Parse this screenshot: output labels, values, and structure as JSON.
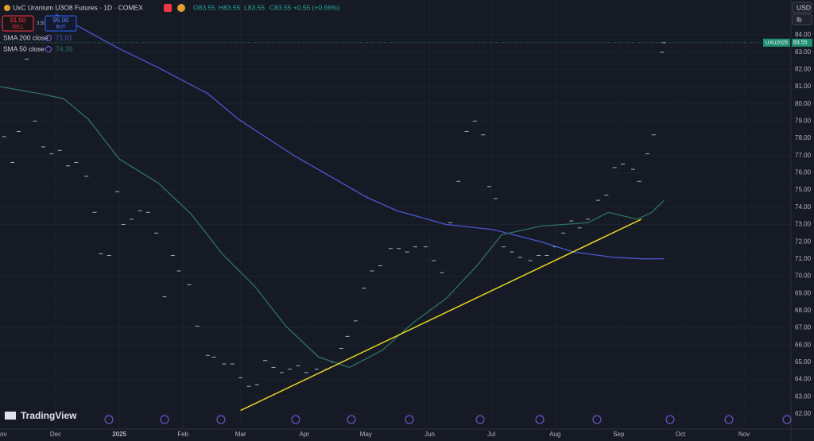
{
  "header": {
    "title": "UxC Uranium U3O8 Futures · 1D · COMEX",
    "ohlc": [
      "O83.55",
      "H83.55",
      "L83.55",
      "C83.55 +0.55 (+0.66%)"
    ],
    "sell": {
      "price": "91.50",
      "label": "SELL"
    },
    "spread": "3.50",
    "buy": {
      "price": "95.00",
      "label": "BUY"
    },
    "currency": "USD",
    "unit": "lb",
    "logo": "TradingView"
  },
  "chart_data": {
    "type": "line",
    "symbol_label": "UXU2025",
    "grid": true,
    "xlim": [
      2.94,
      387.8
    ],
    "ylim": [
      61.12,
      86.03
    ],
    "xticks": [
      {
        "value": 0,
        "label": "ov"
      },
      {
        "value": 30,
        "label": "Dec"
      },
      {
        "value": 61,
        "label": "2025"
      },
      {
        "value": 92,
        "label": "Feb"
      },
      {
        "value": 120,
        "label": "Mar"
      },
      {
        "value": 151,
        "label": "Apr"
      },
      {
        "value": 181,
        "label": "May"
      },
      {
        "value": 212,
        "label": "Jun"
      },
      {
        "value": 242,
        "label": "Jul"
      },
      {
        "value": 273,
        "label": "Aug"
      },
      {
        "value": 304,
        "label": "Sep"
      },
      {
        "value": 334,
        "label": "Oct"
      },
      {
        "value": 365,
        "label": "Nov"
      }
    ],
    "yticks": [
      {
        "value": 62,
        "label": "62.00"
      },
      {
        "value": 63,
        "label": "63.00"
      },
      {
        "value": 64,
        "label": "64.00"
      },
      {
        "value": 65,
        "label": "65.00"
      },
      {
        "value": 66,
        "label": "66.00"
      },
      {
        "value": 67,
        "label": "67.00"
      },
      {
        "value": 68,
        "label": "68.00"
      },
      {
        "value": 69,
        "label": "69.00"
      },
      {
        "value": 70,
        "label": "70.00"
      },
      {
        "value": 71,
        "label": "71.00"
      },
      {
        "value": 72,
        "label": "72.00"
      },
      {
        "value": 73,
        "label": "73.00"
      },
      {
        "value": 74,
        "label": "74.00"
      },
      {
        "value": 75,
        "label": "75.00"
      },
      {
        "value": 76,
        "label": "76.00"
      },
      {
        "value": 77,
        "label": "77.00"
      },
      {
        "value": 78,
        "label": "78.00"
      },
      {
        "value": 79,
        "label": "79.00"
      },
      {
        "value": 80,
        "label": "80.00"
      },
      {
        "value": 81,
        "label": "81.00"
      },
      {
        "value": 82,
        "label": "82.00"
      },
      {
        "value": 83,
        "label": "83.00"
      },
      {
        "value": 84,
        "label": "84.00"
      }
    ],
    "series": [
      {
        "style": "dash",
        "color": "#9fb4bd",
        "x": [
          5,
          9,
          12,
          16,
          20,
          24,
          28,
          32,
          36,
          40,
          45,
          49,
          52,
          56,
          60,
          63,
          67,
          71,
          75,
          79,
          83,
          87,
          90,
          95,
          99,
          104,
          107,
          112,
          116,
          120,
          124,
          128,
          132,
          136,
          140,
          144,
          148,
          152,
          157,
          162,
          165,
          169,
          172,
          176,
          180,
          184,
          188,
          193,
          197,
          201,
          205,
          210,
          214,
          218,
          222,
          226,
          230,
          234,
          238,
          241,
          244,
          248,
          252,
          256,
          261,
          265,
          269,
          273,
          277,
          281,
          285,
          289,
          294,
          298,
          302,
          306,
          311,
          314,
          318,
          321,
          325,
          326
        ],
        "values": [
          78.1,
          76.6,
          78.4,
          82.6,
          79.0,
          77.5,
          77.1,
          77.3,
          76.4,
          76.6,
          75.8,
          73.7,
          71.3,
          71.2,
          74.9,
          73.0,
          73.3,
          73.8,
          73.7,
          72.5,
          68.8,
          71.2,
          70.3,
          69.5,
          67.1,
          65.4,
          65.3,
          64.9,
          64.9,
          64.1,
          63.6,
          63.7,
          65.1,
          64.7,
          64.4,
          64.6,
          64.8,
          64.4,
          64.6,
          64.6,
          65.0,
          65.8,
          66.5,
          67.4,
          69.3,
          70.3,
          70.6,
          71.6,
          71.6,
          71.4,
          71.7,
          71.7,
          70.9,
          70.2,
          73.1,
          75.5,
          78.4,
          79.0,
          78.2,
          75.2,
          74.5,
          71.7,
          71.4,
          71.1,
          70.9,
          71.2,
          71.2,
          71.7,
          72.5,
          73.2,
          72.8,
          73.3,
          74.4,
          74.7,
          76.3,
          76.5,
          76.2,
          75.5,
          77.1,
          78.2,
          83.0,
          83.55
        ]
      },
      {
        "name": "SMA 200 close",
        "style": "line",
        "color": "#4a58d0",
        "x": [
          30,
          38,
          61,
          80,
          104,
          119,
          146,
          165,
          181,
          196,
          220,
          243,
          266,
          282,
          301,
          316,
          326
        ],
        "values": [
          85.2,
          84.7,
          83.2,
          82.1,
          80.6,
          79.1,
          77.0,
          75.7,
          74.6,
          73.8,
          73.0,
          72.7,
          72.0,
          71.4,
          71.1,
          71.0,
          71.01
        ]
      },
      {
        "name": "SMA 50 close",
        "style": "line",
        "color": "#2e7262",
        "x": [
          3,
          22,
          34,
          46,
          61,
          80,
          96,
          111,
          127,
          142,
          158,
          173,
          189,
          204,
          220,
          235,
          247,
          266,
          289,
          299,
          313,
          320,
          326
        ],
        "values": [
          81.0,
          80.6,
          80.3,
          79.1,
          76.8,
          75.4,
          73.6,
          71.3,
          69.4,
          67.1,
          65.3,
          64.7,
          65.7,
          67.3,
          68.7,
          70.6,
          72.4,
          72.9,
          73.1,
          73.7,
          73.3,
          73.7,
          74.39
        ]
      }
    ],
    "trend_line": {
      "x": [
        120,
        315
      ],
      "values": [
        62.2,
        73.3
      ],
      "color": "#e8d620"
    }
  }
}
